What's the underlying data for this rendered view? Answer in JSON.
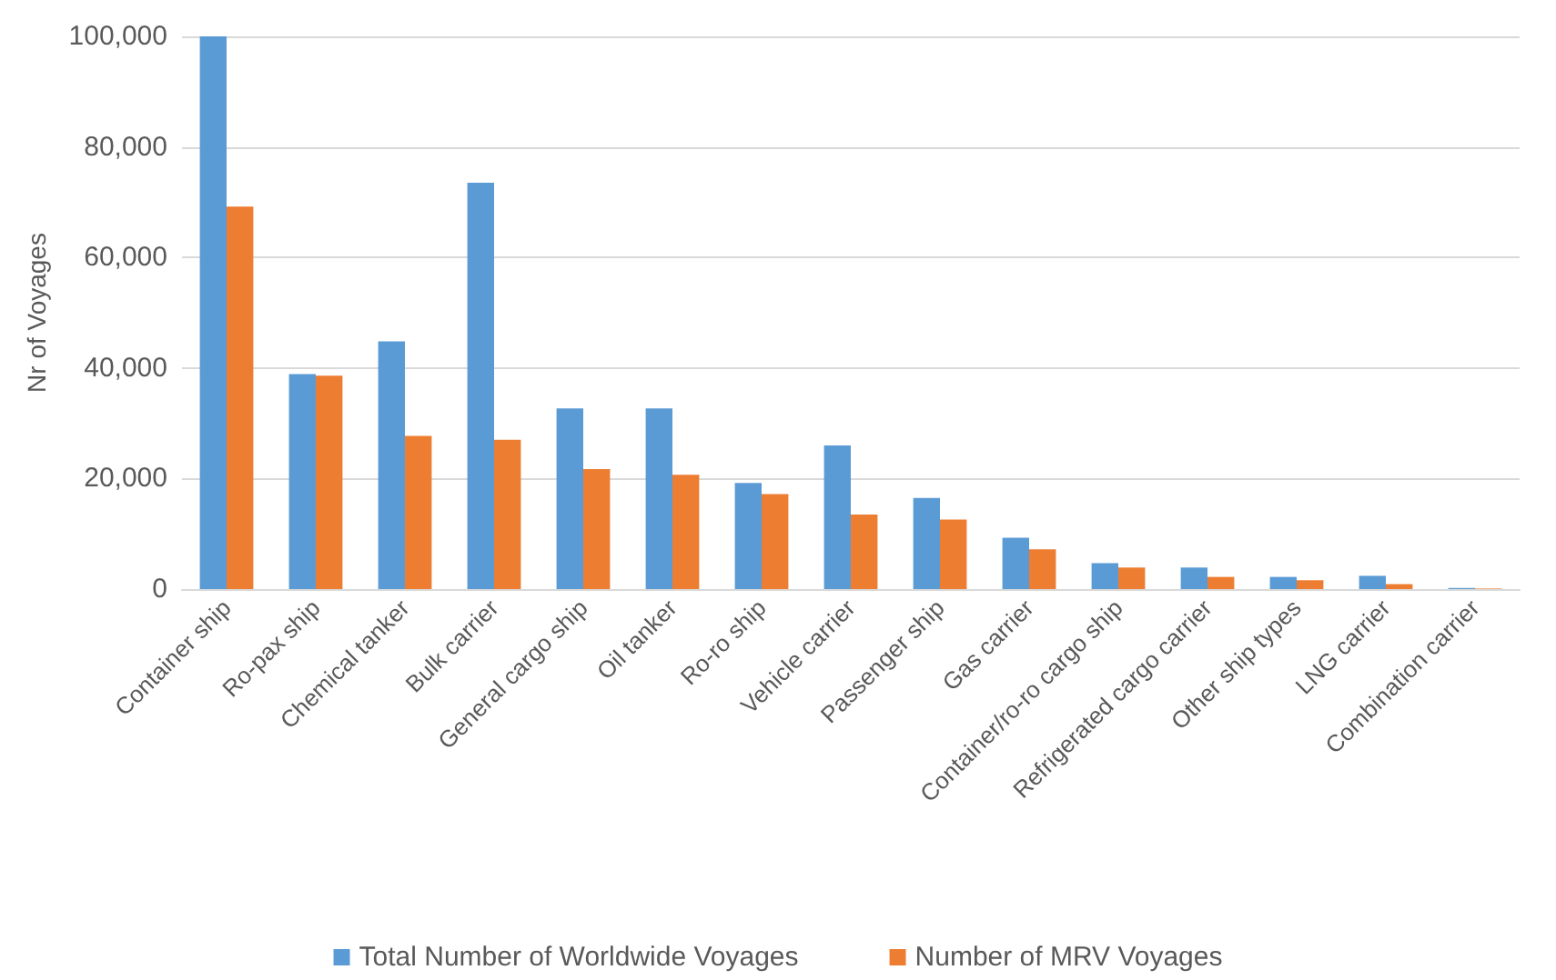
{
  "chart_data": {
    "type": "bar",
    "ylabel": "Nr of Voyages",
    "categories": [
      "Container ship",
      "Ro-pax ship",
      "Chemical tanker",
      "Bulk carrier",
      "General cargo ship",
      "Oil tanker",
      "Ro-ro ship",
      "Vehicle carrier",
      "Passenger ship",
      "Gas carrier",
      "Container/ro-ro cargo ship",
      "Refrigerated cargo carrier",
      "Other ship types",
      "LNG carrier",
      "Combination carrier"
    ],
    "series": [
      {
        "name": "Total Number of Worldwide Voyages",
        "color": "#5b9bd5",
        "values": [
          100000,
          38900,
          44800,
          73500,
          32700,
          32700,
          19200,
          26000,
          16500,
          9300,
          4700,
          3900,
          2200,
          2400,
          200
        ]
      },
      {
        "name": "Number of MRV Voyages",
        "color": "#ed7d31",
        "values": [
          69200,
          38600,
          27700,
          27000,
          21700,
          20700,
          17200,
          13500,
          12600,
          7200,
          3900,
          2200,
          1600,
          900,
          100
        ]
      }
    ],
    "ylim": [
      0,
      100000
    ],
    "yticks": [
      {
        "value": 0,
        "label": "0"
      },
      {
        "value": 20000,
        "label": "20,000"
      },
      {
        "value": 40000,
        "label": "40,000"
      },
      {
        "value": 60000,
        "label": "60,000"
      },
      {
        "value": 80000,
        "label": "80,000"
      },
      {
        "value": 100000,
        "label": "100,000"
      }
    ],
    "grid": "y",
    "legend": "bottom"
  }
}
